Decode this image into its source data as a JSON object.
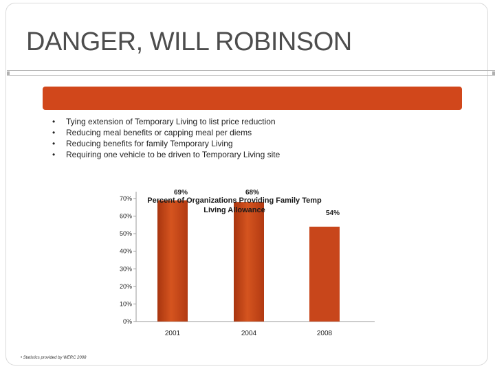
{
  "slide": {
    "title": "DANGER, WILL ROBINSON",
    "bullets": [
      "Tying extension of Temporary Living to list price reduction",
      "Reducing meal benefits or capping meal per diems",
      "Reducing benefits for family Temporary Living",
      "Requiring one vehicle to be driven to Temporary Living site"
    ],
    "footnote": "• Statistics provided by WERC 2008",
    "colors": {
      "banner": "#d1471b",
      "bar": "#c8461b"
    }
  },
  "chart_data": {
    "type": "bar",
    "title_line1": "Percent of Organizations Providing Family Temp",
    "title_line2": "Living Allowance",
    "categories": [
      "2001",
      "2004",
      "2008"
    ],
    "values": [
      69,
      68,
      54
    ],
    "data_labels": [
      "69%",
      "68%",
      "54%"
    ],
    "y_ticks": [
      "0%",
      "10%",
      "20%",
      "30%",
      "40%",
      "50%",
      "60%",
      "70%"
    ],
    "ylim": [
      0,
      70
    ],
    "xlabel": "",
    "ylabel": "",
    "grid": false
  }
}
